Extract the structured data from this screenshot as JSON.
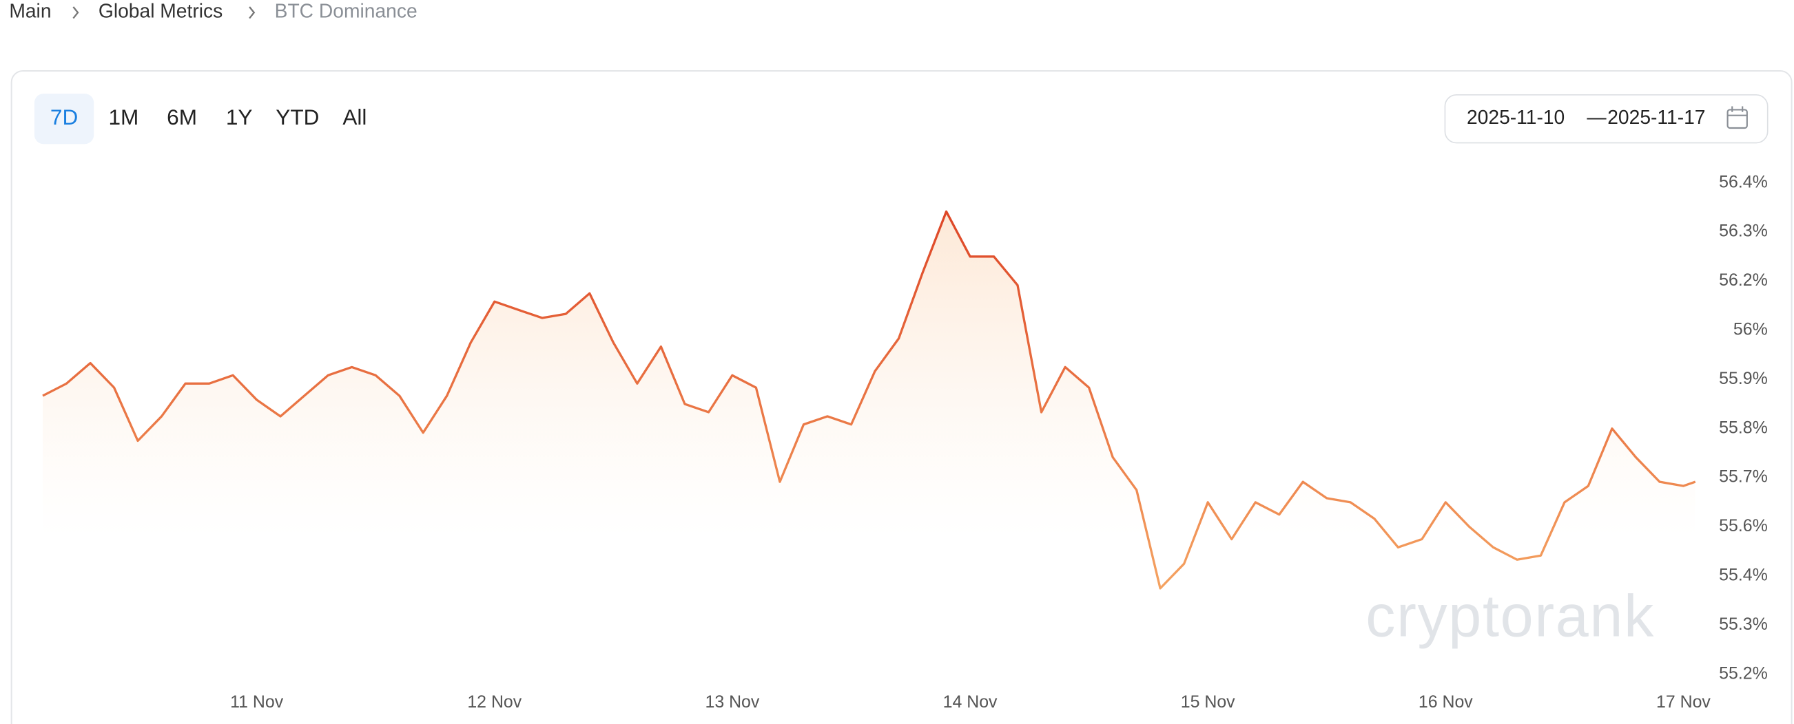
{
  "breadcrumb": [
    "Main",
    "Global Metrics",
    "BTC Dominance"
  ],
  "tabs": [
    "7D",
    "1M",
    "6M",
    "1Y",
    "YTD",
    "All"
  ],
  "active_tab": "7D",
  "date_range": {
    "start": "2025-11-10",
    "separator": "—",
    "end": "2025-11-17"
  },
  "watermark": "cryptorank",
  "chart_data": {
    "type": "line",
    "line_colors": [
      "#dc3f22",
      "#f5a462"
    ],
    "x": [
      10.1,
      10.2,
      10.3,
      10.4,
      10.5,
      10.6,
      10.7,
      10.8,
      10.9,
      11.0,
      11.1,
      11.2,
      11.3,
      11.4,
      11.5,
      11.6,
      11.7,
      11.8,
      11.9,
      12.0,
      12.1,
      12.2,
      12.3,
      12.4,
      12.5,
      12.6,
      12.7,
      12.8,
      12.9,
      13.0,
      13.1,
      13.2,
      13.3,
      13.4,
      13.5,
      13.6,
      13.7,
      13.8,
      13.9,
      14.0,
      14.1,
      14.2,
      14.3,
      14.4,
      14.5,
      14.6,
      14.7,
      14.8,
      14.9,
      15.0,
      15.1,
      15.2,
      15.3,
      15.4,
      15.5,
      15.6,
      15.7,
      15.8,
      15.9,
      16.0,
      16.1,
      16.2,
      16.3,
      16.4,
      16.5,
      16.6,
      16.7,
      16.8,
      16.9,
      17.0,
      17.05
    ],
    "values": [
      55.88,
      55.91,
      55.96,
      55.9,
      55.77,
      55.83,
      55.91,
      55.91,
      55.93,
      55.87,
      55.83,
      55.88,
      55.93,
      55.95,
      55.93,
      55.88,
      55.79,
      55.88,
      56.01,
      56.11,
      56.09,
      56.07,
      56.08,
      56.13,
      56.01,
      55.91,
      56.0,
      55.86,
      55.84,
      55.93,
      55.9,
      55.67,
      55.81,
      55.83,
      55.81,
      55.94,
      56.02,
      56.18,
      56.33,
      56.22,
      56.22,
      56.15,
      55.84,
      55.95,
      55.9,
      55.73,
      55.65,
      55.41,
      55.47,
      55.62,
      55.53,
      55.62,
      55.59,
      55.67,
      55.63,
      55.62,
      55.58,
      55.51,
      55.53,
      55.62,
      55.56,
      55.51,
      55.48,
      55.49,
      55.62,
      55.66,
      55.8,
      55.73,
      55.67,
      55.66,
      55.67
    ],
    "xlim": [
      10.06,
      17.08
    ],
    "xticks": [
      {
        "value": 11,
        "label": "11 Nov"
      },
      {
        "value": 12,
        "label": "12 Nov"
      },
      {
        "value": 13,
        "label": "13 Nov"
      },
      {
        "value": 14,
        "label": "14 Nov"
      },
      {
        "value": 15,
        "label": "15 Nov"
      },
      {
        "value": 16,
        "label": "16 Nov"
      },
      {
        "value": 17,
        "label": "17 Nov"
      }
    ],
    "ylim": [
      55.2,
      56.4
    ],
    "yticks": [
      {
        "value": 55.2,
        "label": "55.2%"
      },
      {
        "value": 55.32,
        "label": "55.3%"
      },
      {
        "value": 55.44,
        "label": "55.4%"
      },
      {
        "value": 55.56,
        "label": "55.6%"
      },
      {
        "value": 55.68,
        "label": "55.7%"
      },
      {
        "value": 55.8,
        "label": "55.8%"
      },
      {
        "value": 55.92,
        "label": "55.9%"
      },
      {
        "value": 56.04,
        "label": "56%"
      },
      {
        "value": 56.16,
        "label": "56.2%"
      },
      {
        "value": 56.28,
        "label": "56.3%"
      },
      {
        "value": 56.4,
        "label": "56.4%"
      }
    ],
    "grid": false
  }
}
